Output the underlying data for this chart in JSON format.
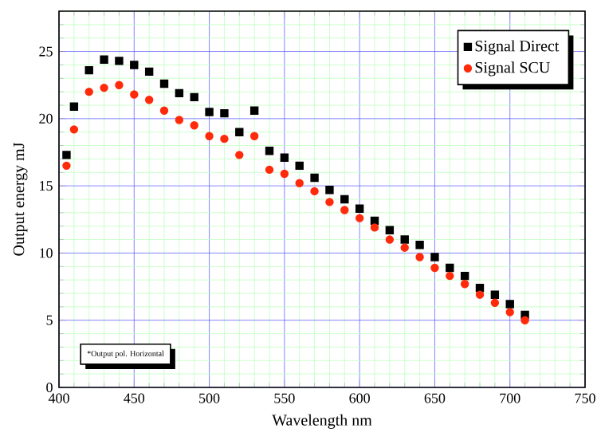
{
  "chart_data": {
    "type": "scatter",
    "xlabel": "Wavelength nm",
    "ylabel": "Output energy mJ",
    "x": [
      405,
      410,
      420,
      430,
      440,
      450,
      460,
      470,
      480,
      490,
      500,
      510,
      520,
      530,
      540,
      550,
      560,
      570,
      580,
      590,
      600,
      610,
      620,
      630,
      640,
      650,
      660,
      670,
      680,
      690,
      700,
      710
    ],
    "series": [
      {
        "name": "Signal Direct",
        "color": "#000000",
        "marker": "square",
        "values": [
          17.3,
          20.9,
          23.6,
          24.4,
          24.3,
          24.0,
          23.5,
          22.6,
          21.9,
          21.6,
          20.5,
          20.4,
          19.0,
          20.6,
          17.6,
          17.1,
          16.5,
          15.6,
          14.7,
          14.0,
          13.3,
          12.4,
          11.7,
          11.0,
          10.6,
          9.7,
          8.9,
          8.3,
          7.4,
          6.9,
          6.2,
          5.4
        ]
      },
      {
        "name": "Signal SCU",
        "color": "#ff2a0a",
        "marker": "circle",
        "values": [
          16.5,
          19.2,
          22.0,
          22.3,
          22.5,
          21.8,
          21.4,
          20.6,
          19.9,
          19.5,
          18.7,
          18.5,
          17.3,
          18.7,
          16.2,
          15.9,
          15.2,
          14.6,
          13.8,
          13.2,
          12.6,
          11.9,
          11.0,
          10.4,
          9.7,
          8.9,
          8.3,
          7.7,
          6.9,
          6.3,
          5.6,
          5.0
        ]
      }
    ],
    "xlim": [
      400,
      750
    ],
    "xticks": [
      400,
      {
        "value": 410,
        "label": null
      },
      {
        "value": 420,
        "label": null
      },
      {
        "value": 430,
        "label": null
      },
      {
        "value": 440,
        "label": null
      },
      450,
      {
        "value": 460,
        "label": null
      },
      {
        "value": 470,
        "label": null
      },
      {
        "value": 480,
        "label": null
      },
      {
        "value": 490,
        "label": null
      },
      500,
      {
        "value": 510,
        "label": null
      },
      {
        "value": 520,
        "label": null
      },
      {
        "value": 530,
        "label": null
      },
      {
        "value": 540,
        "label": null
      },
      550,
      {
        "value": 560,
        "label": null
      },
      {
        "value": 570,
        "label": null
      },
      {
        "value": 580,
        "label": null
      },
      {
        "value": 590,
        "label": null
      },
      600,
      {
        "value": 610,
        "label": null
      },
      {
        "value": 620,
        "label": null
      },
      {
        "value": 630,
        "label": null
      },
      {
        "value": 640,
        "label": null
      },
      650,
      {
        "value": 660,
        "label": null
      },
      {
        "value": 670,
        "label": null
      },
      {
        "value": 680,
        "label": null
      },
      {
        "value": 690,
        "label": null
      },
      700,
      {
        "value": 710,
        "label": null
      },
      {
        "value": 720,
        "label": null
      },
      {
        "value": 730,
        "label": null
      },
      {
        "value": 740,
        "label": null
      },
      750
    ],
    "ylim": [
      0,
      28
    ],
    "yticks": [
      0,
      {
        "value": 1,
        "label": null
      },
      {
        "value": 2,
        "label": null
      },
      {
        "value": 3,
        "label": null
      },
      {
        "value": 4,
        "label": null
      },
      5,
      {
        "value": 6,
        "label": null
      },
      {
        "value": 7,
        "label": null
      },
      {
        "value": 8,
        "label": null
      },
      {
        "value": 9,
        "label": null
      },
      10,
      {
        "value": 11,
        "label": null
      },
      {
        "value": 12,
        "label": null
      },
      {
        "value": 13,
        "label": null
      },
      {
        "value": 14,
        "label": null
      },
      15,
      {
        "value": 16,
        "label": null
      },
      {
        "value": 17,
        "label": null
      },
      {
        "value": 18,
        "label": null
      },
      {
        "value": 19,
        "label": null
      },
      20,
      {
        "value": 21,
        "label": null
      },
      {
        "value": 22,
        "label": null
      },
      {
        "value": 23,
        "label": null
      },
      {
        "value": 24,
        "label": null
      },
      25,
      {
        "value": 26,
        "label": null
      },
      {
        "value": 27,
        "label": null
      },
      {
        "value": 28,
        "label": null
      }
    ],
    "grid": true,
    "legend": "top right",
    "annotations": [
      "*Output pol. Horizontal"
    ]
  }
}
